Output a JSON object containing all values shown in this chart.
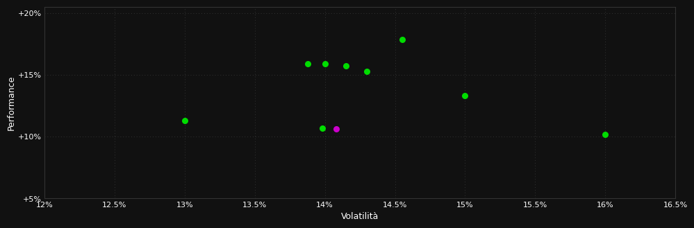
{
  "background_color": "#111111",
  "plot_bg_color": "#111111",
  "grid_color": "#333333",
  "text_color": "#ffffff",
  "xlabel": "Volatilità",
  "ylabel": "Performance",
  "xlim": [
    0.12,
    0.165
  ],
  "ylim": [
    0.05,
    0.205
  ],
  "xticks": [
    0.12,
    0.125,
    0.13,
    0.135,
    0.14,
    0.145,
    0.15,
    0.155,
    0.16,
    0.165
  ],
  "yticks": [
    0.05,
    0.1,
    0.15,
    0.2
  ],
  "ytick_labels": [
    "+5%",
    "+10%",
    "+15%",
    "+20%"
  ],
  "xtick_labels": [
    "12%",
    "12.5%",
    "13%",
    "13.5%",
    "14%",
    "14.5%",
    "15%",
    "15.5%",
    "16%",
    "16.5%"
  ],
  "green_points": [
    [
      0.13,
      0.113
    ],
    [
      0.1388,
      0.159
    ],
    [
      0.14,
      0.159
    ],
    [
      0.1415,
      0.157
    ],
    [
      0.143,
      0.1525
    ],
    [
      0.1455,
      0.1785
    ],
    [
      0.15,
      0.133
    ],
    [
      0.16,
      0.102
    ],
    [
      0.1398,
      0.1065
    ]
  ],
  "purple_points": [
    [
      0.1408,
      0.106
    ]
  ],
  "green_color": "#00dd00",
  "purple_color": "#cc00cc",
  "marker_size": 30,
  "tick_fontsize": 8,
  "label_fontsize": 9
}
